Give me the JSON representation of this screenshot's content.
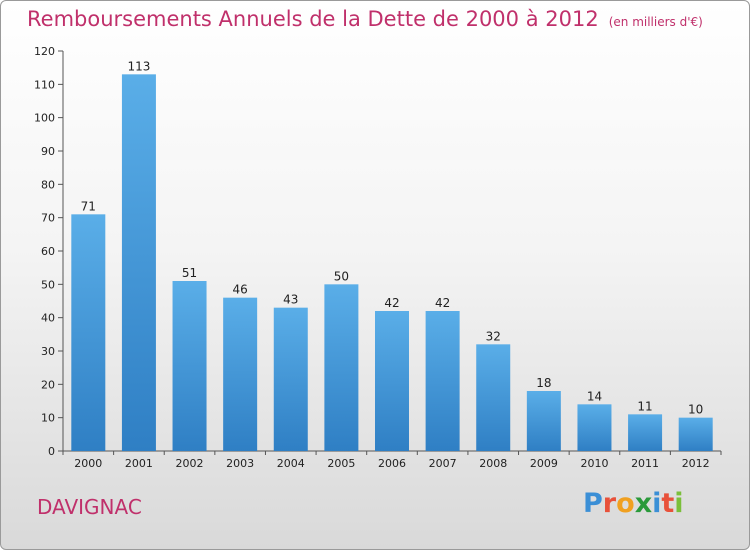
{
  "header": {
    "title": "Remboursements Annuels de la Dette de 2000 à 2012",
    "unit": "(en milliers d'€)"
  },
  "footer": {
    "commune": "DAVIGNAC",
    "brand_letters": [
      {
        "ch": "P",
        "color": "#3b8fd6"
      },
      {
        "ch": "r",
        "color": "#e8513a"
      },
      {
        "ch": "o",
        "color": "#f0a020"
      },
      {
        "ch": "x",
        "color": "#2a9a3a"
      },
      {
        "ch": "i",
        "color": "#3b8fd6"
      },
      {
        "ch": "t",
        "color": "#e8513a"
      },
      {
        "ch": "i",
        "color": "#7abf3a"
      }
    ]
  },
  "chart_data": {
    "type": "bar",
    "categories": [
      "2000",
      "2001",
      "2002",
      "2003",
      "2004",
      "2005",
      "2006",
      "2007",
      "2008",
      "2009",
      "2010",
      "2011",
      "2012"
    ],
    "values": [
      71,
      113,
      51,
      46,
      43,
      50,
      42,
      42,
      32,
      18,
      14,
      11,
      10
    ],
    "ylim": [
      0,
      120
    ],
    "yticks": [
      0,
      10,
      20,
      30,
      40,
      50,
      60,
      70,
      80,
      90,
      100,
      110,
      120
    ],
    "grid": false,
    "bar_color_top": "#5aaee8",
    "bar_color_bottom": "#2f7fc4"
  }
}
